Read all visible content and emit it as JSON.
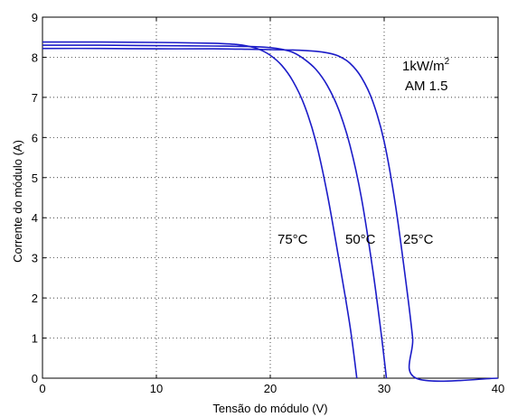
{
  "chart_data": {
    "type": "line",
    "xlabel": "Tensão do módulo (V)",
    "ylabel": "Corrente do módulo (A)",
    "xlim": [
      0,
      40
    ],
    "ylim": [
      0,
      9
    ],
    "xticks": [
      "0",
      "10",
      "20",
      "30",
      "40"
    ],
    "yticks": [
      "0",
      "1",
      "2",
      "3",
      "4",
      "5",
      "6",
      "7",
      "8",
      "9"
    ],
    "grid": true,
    "line_color": "#1c1cc8",
    "annotations": {
      "irradiance_base": "1kW/m",
      "irradiance_sup": "2",
      "air_mass": "AM 1.5"
    },
    "series": [
      {
        "name": "25°C",
        "x": [
          0,
          5,
          10,
          15,
          18,
          20,
          22,
          24,
          25,
          26,
          27,
          28,
          29,
          30,
          31,
          32,
          32.5,
          32.8,
          40
        ],
        "y": [
          8.22,
          8.22,
          8.21,
          8.21,
          8.2,
          8.19,
          8.18,
          8.15,
          8.11,
          8.03,
          7.85,
          7.5,
          6.9,
          5.9,
          4.3,
          2.2,
          1.0,
          0,
          0
        ]
      },
      {
        "name": "50°C",
        "x": [
          0,
          5,
          10,
          15,
          18,
          20,
          21,
          22,
          23,
          24,
          25,
          26,
          27,
          28,
          29,
          29.7,
          30.2
        ],
        "y": [
          8.3,
          8.3,
          8.29,
          8.28,
          8.27,
          8.24,
          8.2,
          8.12,
          7.95,
          7.7,
          7.3,
          6.7,
          5.8,
          4.5,
          2.7,
          1.2,
          0
        ]
      },
      {
        "name": "75°C",
        "x": [
          0,
          5,
          10,
          15,
          17,
          18,
          19,
          20,
          21,
          22,
          23,
          24,
          25,
          26,
          27,
          27.6
        ],
        "y": [
          8.38,
          8.38,
          8.37,
          8.35,
          8.32,
          8.28,
          8.2,
          8.05,
          7.8,
          7.4,
          6.8,
          5.9,
          4.6,
          3.0,
          1.3,
          0
        ]
      }
    ],
    "curve_labels": [
      "75°C",
      "50°C",
      "25°C"
    ]
  }
}
